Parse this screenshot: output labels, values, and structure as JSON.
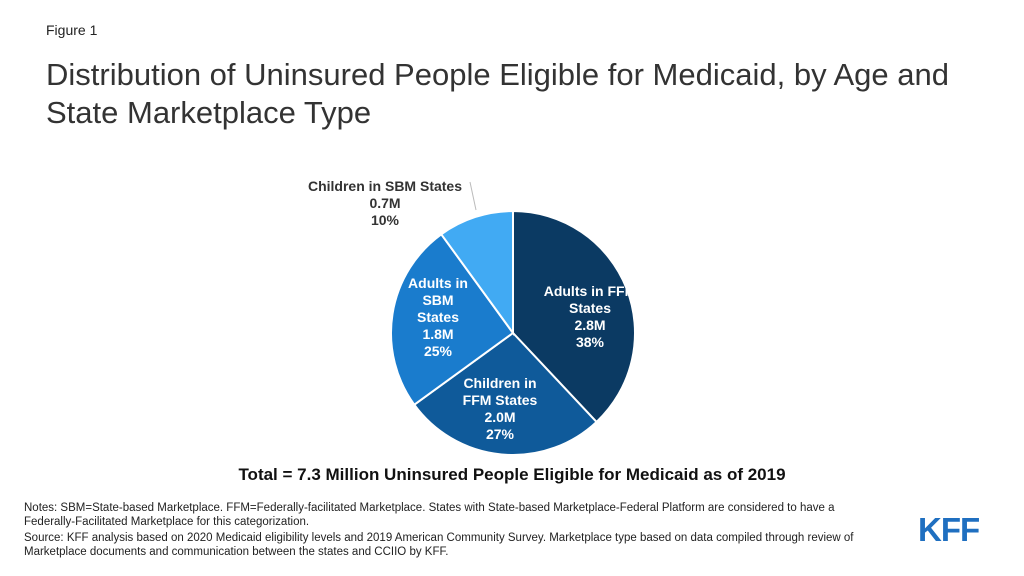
{
  "figure_label": "Figure 1",
  "title": "Distribution of Uninsured People Eligible for Medicaid, by Age and State Marketplace Type",
  "total_text": "Total = 7.3 Million Uninsured People Eligible for Medicaid as of 2019",
  "notes": "Notes: SBM=State-based Marketplace. FFM=Federally-facilitated Marketplace. States with State-based Marketplace-Federal Platform are considered to have a Federally-Facilitated Marketplace for this categorization.",
  "source": "Source: KFF analysis based on 2020 Medicaid eligibility levels and 2019 American Community Survey. Marketplace type based on data compiled through review of Marketplace documents and communication between the states and CCIIO by KFF.",
  "logo_text": "KFF",
  "chart_data": {
    "type": "pie",
    "title": "",
    "slices": [
      {
        "name": "Adults in FFM States",
        "value_label": "2.8M",
        "value": 2.8,
        "percent": 38,
        "color": "#0b3a63",
        "label_lines": [
          "Adults in FFM",
          "States",
          "2.8M",
          "38%"
        ]
      },
      {
        "name": "Children in FFM States",
        "value_label": "2.0M",
        "value": 2.0,
        "percent": 27,
        "color": "#0f5a9a",
        "label_lines": [
          "Children in",
          "FFM States",
          "2.0M",
          "27%"
        ]
      },
      {
        "name": "Adults in SBM States",
        "value_label": "1.8M",
        "value": 1.8,
        "percent": 25,
        "color": "#1a7ccd",
        "label_lines": [
          "Adults in",
          "SBM",
          "States",
          "1.8M",
          "25%"
        ]
      },
      {
        "name": "Children in SBM States",
        "value_label": "0.7M",
        "value": 0.7,
        "percent": 10,
        "color": "#41aaf3",
        "label_lines": [
          "Children in SBM States",
          "0.7M",
          "10%"
        ]
      }
    ]
  }
}
